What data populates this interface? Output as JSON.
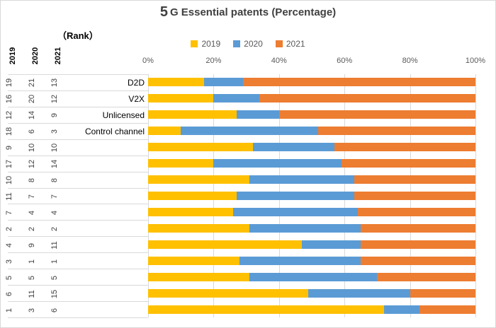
{
  "header": {
    "title_leading": "5",
    "title_rest": "G Essential patents (Percentage)",
    "rank_caption": "（Rank）"
  },
  "rank_columns": [
    "2019",
    "2020",
    "2021"
  ],
  "colors": {
    "series_2019": "#FFC000",
    "series_2020": "#5B9BD5",
    "series_2021": "#ED7D31",
    "gridline": "#D9D9D9",
    "axis_text": "#595959",
    "title_text": "#404040"
  },
  "chart_data": {
    "type": "bar",
    "orientation": "horizontal-stacked",
    "title": "5 G Essential patents (Percentage)",
    "legend_position": "top",
    "gridlines": "vertical-only",
    "x_range": [
      0,
      100
    ],
    "x_ticks": [
      "0%",
      "20%",
      "40%",
      "60%",
      "80%",
      "100%"
    ],
    "categories": [
      "D2D",
      "V2X",
      "Unlicensed",
      "Control channel",
      "",
      "",
      "",
      "",
      "",
      "",
      "",
      "",
      "",
      "",
      ""
    ],
    "ranks": [
      [
        19,
        21,
        13
      ],
      [
        16,
        20,
        12
      ],
      [
        12,
        14,
        9
      ],
      [
        18,
        6,
        3
      ],
      [
        9,
        10,
        10
      ],
      [
        17,
        12,
        14
      ],
      [
        10,
        8,
        8
      ],
      [
        11,
        7,
        7
      ],
      [
        7,
        4,
        4
      ],
      [
        2,
        2,
        2
      ],
      [
        4,
        9,
        11
      ],
      [
        3,
        1,
        1
      ],
      [
        5,
        5,
        5
      ],
      [
        6,
        11,
        15
      ],
      [
        1,
        3,
        6
      ]
    ],
    "series": [
      {
        "name": "2019",
        "color": "#FFC000",
        "values": [
          17,
          20,
          27,
          10,
          32,
          20,
          31,
          27,
          26,
          31,
          47,
          28,
          31,
          49,
          72
        ]
      },
      {
        "name": "2020",
        "color": "#5B9BD5",
        "values": [
          12,
          14,
          13,
          42,
          25,
          39,
          32,
          36,
          38,
          34,
          18,
          37,
          39,
          31,
          11
        ]
      },
      {
        "name": "2021",
        "color": "#ED7D31",
        "values": [
          71,
          66,
          60,
          48,
          43,
          41,
          37,
          37,
          36,
          35,
          35,
          35,
          30,
          20,
          17
        ]
      }
    ]
  }
}
